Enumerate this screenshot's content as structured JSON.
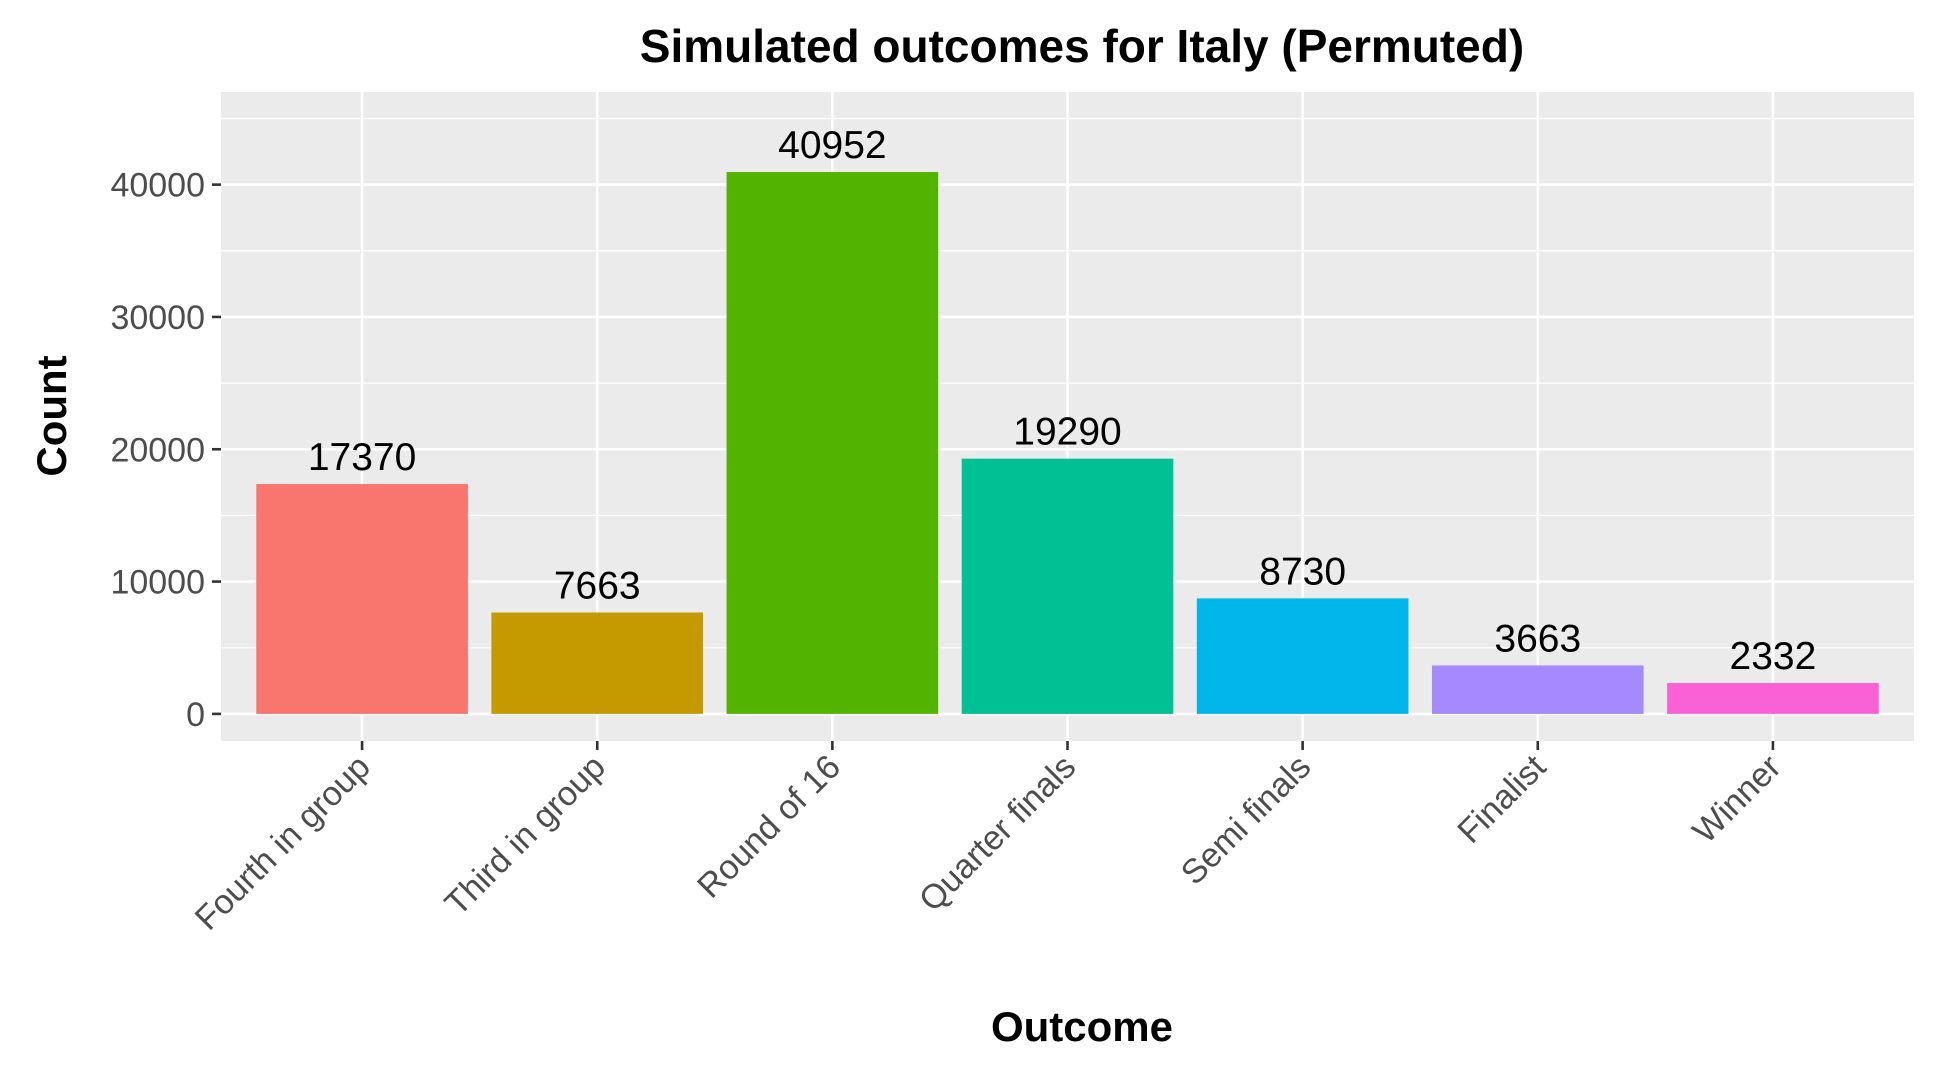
{
  "chart_data": {
    "type": "bar",
    "title": "Simulated outcomes for Italy (Permuted)",
    "xlabel": "Outcome",
    "ylabel": "Count",
    "categories": [
      "Fourth in group",
      "Third in group",
      "Round of 16",
      "Quarter finals",
      "Semi finals",
      "Finalist",
      "Winner"
    ],
    "values": [
      17370,
      7663,
      40952,
      19290,
      8730,
      3663,
      2332
    ],
    "data_labels": [
      "17370",
      "7663",
      "40952",
      "19290",
      "8730",
      "3663",
      "2332"
    ],
    "colors": [
      "#F8766D",
      "#C49A00",
      "#53B400",
      "#00C094",
      "#00B6EB",
      "#A58AFF",
      "#FB61D7"
    ],
    "yticks": [
      0,
      10000,
      20000,
      30000,
      40000
    ],
    "ytick_labels": [
      "0",
      "10000",
      "20000",
      "30000",
      "40000"
    ],
    "ylim": [
      -2048,
      47000
    ],
    "grid": true,
    "legend": "none",
    "panel_background": "#EBEBEB",
    "grid_color": "#FFFFFF"
  }
}
